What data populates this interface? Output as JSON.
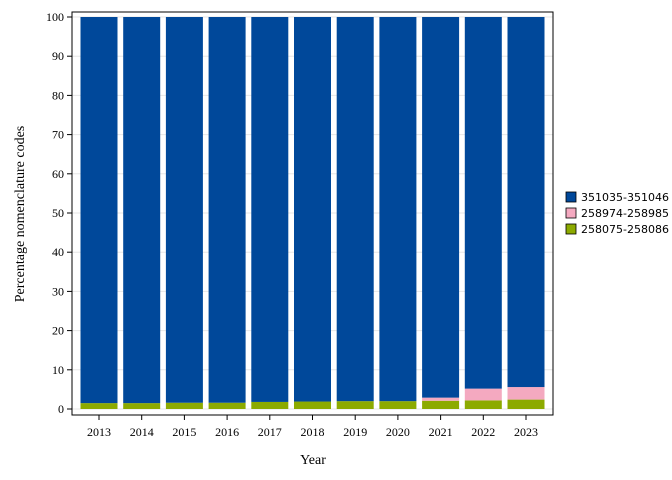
{
  "chart_data": {
    "type": "bar",
    "stacked": true,
    "title": "",
    "xlabel": "Year",
    "ylabel": "Percentage nomenclature codes",
    "ylim": [
      0,
      100
    ],
    "yticks": [
      0,
      10,
      20,
      30,
      40,
      50,
      60,
      70,
      80,
      90,
      100
    ],
    "grid": true,
    "legend_position": "right",
    "categories": [
      "2013",
      "2014",
      "2015",
      "2016",
      "2017",
      "2018",
      "2019",
      "2020",
      "2021",
      "2022",
      "2023"
    ],
    "series": [
      {
        "name": "258075-258086",
        "color": "#8caa00",
        "values": [
          1.5,
          1.5,
          1.6,
          1.6,
          1.8,
          1.9,
          2.0,
          2.0,
          2.1,
          2.2,
          2.4
        ]
      },
      {
        "name": "258974-258985",
        "color": "#f4a9c0",
        "values": [
          0.0,
          0.0,
          0.0,
          0.0,
          0.0,
          0.0,
          0.0,
          0.0,
          0.8,
          3.0,
          3.2
        ]
      },
      {
        "name": "351035-351046",
        "color": "#00489a",
        "values": [
          98.5,
          98.5,
          98.4,
          98.4,
          98.2,
          98.1,
          98.0,
          98.0,
          97.1,
          94.8,
          94.4
        ]
      }
    ],
    "legend_order": [
      "351035-351046",
      "258974-258985",
      "258075-258086"
    ]
  }
}
